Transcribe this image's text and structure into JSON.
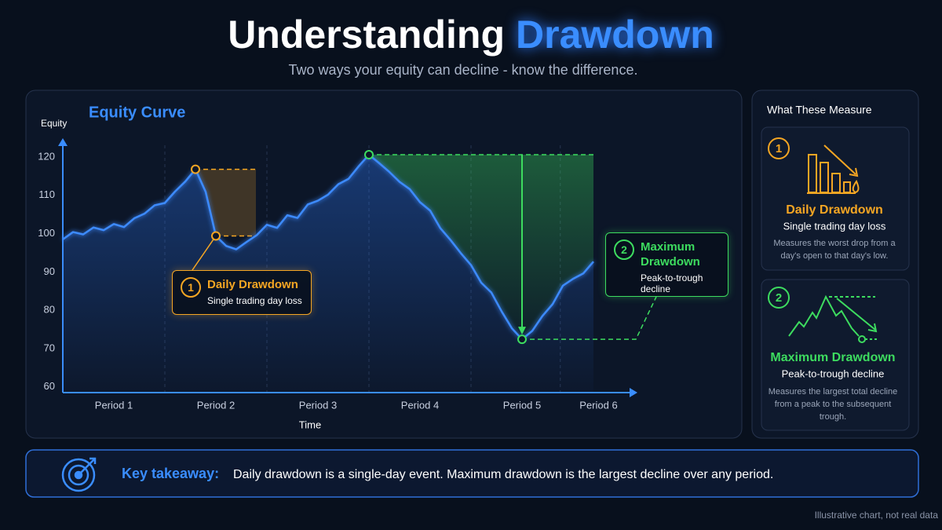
{
  "header": {
    "title": "Understanding",
    "title_highlight": "Drawdown",
    "subtitle": "Two ways your equity can decline - know the difference."
  },
  "chart_data": {
    "type": "line",
    "title": "Equity Curve",
    "y_label": "Equity",
    "x_label": "Time",
    "color": "#3d8bff",
    "x": [
      0,
      0.1,
      0.2,
      0.3,
      0.4,
      0.5,
      0.6,
      0.7,
      0.8,
      0.9,
      1,
      1.1,
      1.2,
      1.3,
      1.4,
      1.5,
      1.6,
      1.7,
      1.8,
      1.9,
      2,
      2.1,
      2.2,
      2.3,
      2.4,
      2.5,
      2.6,
      2.7,
      2.8,
      2.9,
      3,
      3.1,
      3.2,
      3.3,
      3.4,
      3.5,
      3.6,
      3.7,
      3.8,
      3.9,
      4,
      4.1,
      4.2,
      4.3,
      4.4,
      4.5,
      4.6,
      4.7,
      4.8,
      4.9,
      5,
      5.1,
      5.2
    ],
    "values": [
      98.5,
      100.4,
      99.8,
      101.6,
      100.9,
      102.5,
      101.7,
      104.0,
      105.2,
      107.4,
      108.0,
      111.0,
      113.6,
      116.8,
      110.9,
      99.4,
      96.8,
      95.9,
      97.8,
      99.6,
      102.3,
      101.5,
      104.8,
      104.1,
      107.6,
      108.6,
      110.2,
      112.9,
      114.3,
      117.6,
      120.6,
      118.4,
      116.1,
      113.5,
      111.6,
      108.2,
      106.0,
      101.4,
      98.3,
      94.9,
      91.8,
      87.2,
      84.6,
      79.7,
      75.3,
      72.4,
      74.6,
      78.5,
      81.6,
      86.4,
      88.2,
      89.6,
      92.7
    ],
    "xlim": [
      0,
      5.6
    ],
    "ylim": [
      58.5,
      124.5
    ],
    "yticks": [
      60,
      70,
      80,
      90,
      100,
      110,
      120
    ],
    "xticks": [
      {
        "value": 0.5,
        "label": "Period 1"
      },
      {
        "value": 1.5,
        "label": "Period 2"
      },
      {
        "value": 2.5,
        "label": "Period 3"
      },
      {
        "value": 3.5,
        "label": "Period 4"
      },
      {
        "value": 4.5,
        "label": "Period 5"
      },
      {
        "value": 5.25,
        "label": "Period 6"
      }
    ],
    "annotations": [
      {
        "number": "1",
        "title": "Daily Drawdown",
        "text": "Single trading day loss",
        "color": "#f5a623"
      },
      {
        "number": "2",
        "title": "Maximum Drawdown",
        "text": "Peak-to-trough decline",
        "color": "#3ddc5f"
      }
    ]
  },
  "panel": {
    "title": "What These Measure",
    "cards": [
      {
        "number": "1",
        "title": "Daily Drawdown",
        "subtitle": "Single trading day loss",
        "description": "Measures the worst drop from a day's open to that day's low.",
        "color": "#f5a623"
      },
      {
        "number": "2",
        "title": "Maximum Drawdown",
        "subtitle": "Peak-to-trough decline",
        "description": "Measures the largest total decline from a peak to the subsequent trough.",
        "color": "#3ddc5f"
      }
    ]
  },
  "takeaway": {
    "label": "Key takeaway:",
    "text": "Daily drawdown is a single-day event. Maximum drawdown is the largest decline over any period."
  },
  "footer": "Illustrative chart, not real data"
}
